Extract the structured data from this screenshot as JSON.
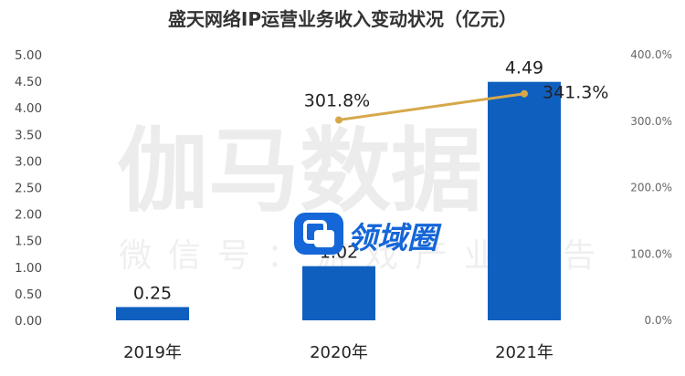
{
  "chart_data": {
    "type": "bar",
    "title": "盛天网络IP运营业务收入变动状况（亿元）",
    "categories": [
      "2019年",
      "2020年",
      "2021年"
    ],
    "series": [
      {
        "type": "bar",
        "values": [
          0.25,
          1.02,
          4.49
        ],
        "value_labels": [
          "0.25",
          "1.02",
          "4.49"
        ]
      },
      {
        "type": "line",
        "axis": "right",
        "values": [
          null,
          301.8,
          341.3
        ],
        "value_labels": [
          "",
          "301.8%",
          "341.3%"
        ]
      }
    ],
    "ylim": [
      0,
      5.0
    ],
    "y_ticks": [
      "5.00",
      "4.50",
      "4.00",
      "3.50",
      "3.00",
      "2.50",
      "2.00",
      "1.50",
      "1.00",
      "0.50",
      "0.00"
    ],
    "y2lim": [
      0,
      400
    ],
    "y2_ticks": [
      "400.0%",
      "300.0%",
      "200.0%",
      "100.0%",
      "0.0%"
    ],
    "grid": false,
    "colors": {
      "bar": "#0f5fbf",
      "line": "#d6a84a",
      "title": "#333333"
    }
  },
  "watermark": {
    "main": "伽马数据",
    "sub": "微信号：游戏产业报告",
    "logo_text": "领域圈"
  }
}
